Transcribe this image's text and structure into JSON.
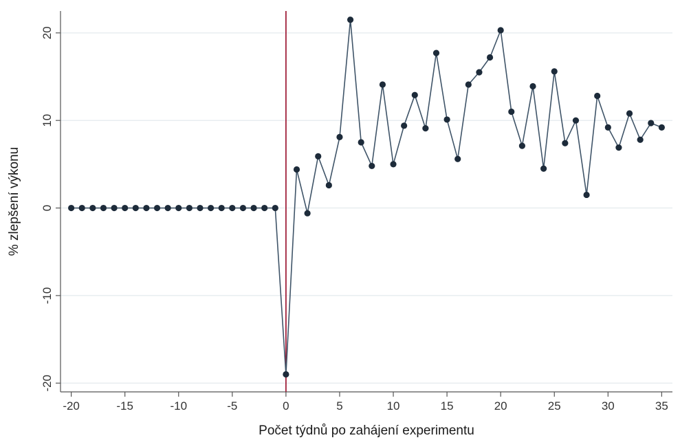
{
  "chart_data": {
    "type": "line",
    "title": "",
    "xlabel": "Počet týdnů po zahájení experimentu",
    "ylabel": "% zlepšení výkonu",
    "xlim": [
      -21,
      36
    ],
    "ylim": [
      -21,
      22.5
    ],
    "xticks": [
      -20,
      -15,
      -10,
      -5,
      0,
      5,
      10,
      15,
      20,
      25,
      30,
      35
    ],
    "xtick_labels": [
      "-20",
      "-15",
      "-10",
      "-5",
      "0",
      "5",
      "10",
      "15",
      "20",
      "25",
      "30",
      "35"
    ],
    "yticks": [
      -20,
      -10,
      0,
      10,
      20
    ],
    "ytick_labels": [
      "-20",
      "-10",
      "0",
      "10",
      "20"
    ],
    "grid": true,
    "reference_line_x": 0,
    "colors": {
      "line": "#3f5468",
      "marker": "#1d2b3a",
      "reference": "#a0203a",
      "grid": "#e8edf0"
    },
    "series": [
      {
        "x": [
          -20,
          -19,
          -18,
          -17,
          -16,
          -15,
          -14,
          -13,
          -12,
          -11,
          -10,
          -9,
          -8,
          -7,
          -6,
          -5,
          -4,
          -3,
          -2,
          -1,
          0,
          1,
          2,
          3,
          4,
          5,
          6,
          7,
          8,
          9,
          10,
          11,
          12,
          13,
          14,
          15,
          16,
          17,
          18,
          19,
          20,
          21,
          22,
          23,
          24,
          25,
          26,
          27,
          28,
          29,
          30,
          31,
          32,
          33,
          34,
          35
        ],
        "y": [
          0,
          0,
          0,
          0,
          0,
          0,
          0,
          0,
          0,
          0,
          0,
          0,
          0,
          0,
          0,
          0,
          0,
          0,
          0,
          0,
          -19.0,
          4.4,
          -0.6,
          5.9,
          2.6,
          8.1,
          21.5,
          7.5,
          4.8,
          14.1,
          5.0,
          9.4,
          12.9,
          9.1,
          17.7,
          10.1,
          5.6,
          14.1,
          15.5,
          17.2,
          20.3,
          11.0,
          7.1,
          13.9,
          4.5,
          15.6,
          7.4,
          10.0,
          1.5,
          12.8,
          9.2,
          6.9,
          10.8,
          7.8,
          9.7,
          9.2
        ]
      }
    ]
  }
}
